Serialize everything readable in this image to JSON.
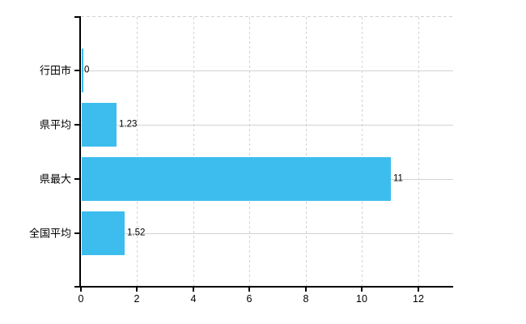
{
  "chart": {
    "background": "#ffffff",
    "bar_color": "#3dbdee",
    "grid_color": "#cfd4cf",
    "axis_color": "#000000",
    "text_color": "#000000"
  },
  "chart_data": {
    "type": "bar",
    "orientation": "horizontal",
    "title": "",
    "xlabel": "",
    "ylabel": "",
    "categories": [
      "行田市",
      "県平均",
      "県最大",
      "全国平均"
    ],
    "values": [
      0,
      1.23,
      11,
      1.52
    ],
    "value_labels": [
      "0",
      "1.23",
      "11",
      "1.52"
    ],
    "xticks": [
      0,
      2,
      4,
      6,
      8,
      10,
      12
    ],
    "xtick_labels": [
      "0",
      "2",
      "4",
      "6",
      "8",
      "10",
      "12"
    ],
    "xlim": [
      0,
      13.24
    ],
    "grid": true,
    "legend": false
  }
}
